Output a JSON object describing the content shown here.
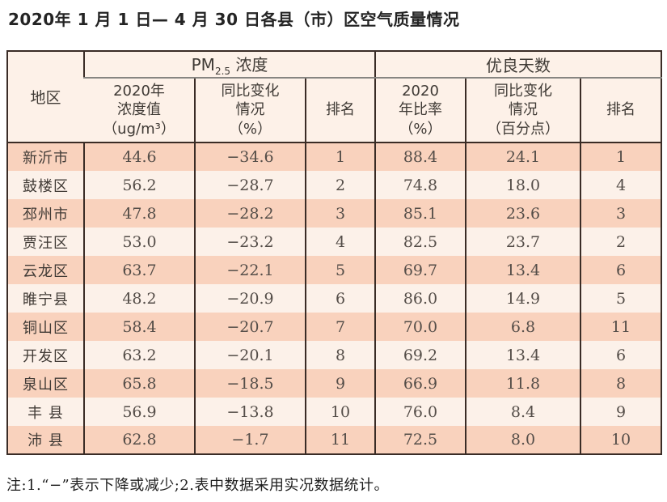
{
  "title": "2020年 1 月 1 日— 4 月 30 日各县（市）区空气质量情况",
  "note": "注:1.“−”表示下降或减少;2.表中数据采用实况数据统计。",
  "colors": {
    "stripe_salmon": "#f9d2bd",
    "stripe_cream": "#fcf1e9",
    "header_bg": "#fdf1e8",
    "border_dark": "#3a2c26",
    "border_gray": "#878581",
    "text_dark": "#3f3a35"
  },
  "table": {
    "header": {
      "region": "地区",
      "pm_group_prefix": "PM",
      "pm_group_sub": "2.5",
      "pm_group_suffix": " 浓度",
      "good_days_group": "优良天数",
      "pm_value": "2020年\n浓度值\n（ug/m³）",
      "pm_change": "同比变化\n情况\n（%）",
      "pm_rank": "排名",
      "good_rate": "2020\n年比率\n（%）",
      "good_change": "同比变化\n情况\n（百分点）",
      "good_rank": "排名"
    },
    "rows": [
      {
        "region": "新沂市",
        "pm_value": "44.6",
        "pm_change": "−34.6",
        "pm_rank": "1",
        "good_rate": "88.4",
        "good_change": "24.1",
        "good_rank": "1"
      },
      {
        "region": "鼓楼区",
        "pm_value": "56.2",
        "pm_change": "−28.7",
        "pm_rank": "2",
        "good_rate": "74.8",
        "good_change": "18.0",
        "good_rank": "4"
      },
      {
        "region": "邳州市",
        "pm_value": "47.8",
        "pm_change": "−28.2",
        "pm_rank": "3",
        "good_rate": "85.1",
        "good_change": "23.6",
        "good_rank": "3"
      },
      {
        "region": "贾汪区",
        "pm_value": "53.0",
        "pm_change": "−23.2",
        "pm_rank": "4",
        "good_rate": "82.5",
        "good_change": "23.7",
        "good_rank": "2"
      },
      {
        "region": "云龙区",
        "pm_value": "63.7",
        "pm_change": "−22.1",
        "pm_rank": "5",
        "good_rate": "69.7",
        "good_change": "13.4",
        "good_rank": "6"
      },
      {
        "region": "睢宁县",
        "pm_value": "48.2",
        "pm_change": "−20.9",
        "pm_rank": "6",
        "good_rate": "86.0",
        "good_change": "14.9",
        "good_rank": "5"
      },
      {
        "region": "铜山区",
        "pm_value": "58.4",
        "pm_change": "−20.7",
        "pm_rank": "7",
        "good_rate": "70.0",
        "good_change": "6.8",
        "good_rank": "11"
      },
      {
        "region": "开发区",
        "pm_value": "63.2",
        "pm_change": "−20.1",
        "pm_rank": "8",
        "good_rate": "69.2",
        "good_change": "13.4",
        "good_rank": "6"
      },
      {
        "region": "泉山区",
        "pm_value": "65.8",
        "pm_change": "−18.5",
        "pm_rank": "9",
        "good_rate": "66.9",
        "good_change": "11.8",
        "good_rank": "8"
      },
      {
        "region": "丰 县",
        "pm_value": "56.9",
        "pm_change": "−13.8",
        "pm_rank": "10",
        "good_rate": "76.0",
        "good_change": "8.4",
        "good_rank": "9"
      },
      {
        "region": "沛 县",
        "pm_value": "62.8",
        "pm_change": "−1.7",
        "pm_rank": "11",
        "good_rate": "72.5",
        "good_change": "8.0",
        "good_rank": "10"
      }
    ]
  },
  "chart_data": {
    "type": "table",
    "title": "2020年1月1日—4月30日各县（市）区空气质量情况",
    "columns": [
      "地区",
      "PM2.5 2020年浓度值(ug/m³)",
      "PM2.5 同比变化情况(%)",
      "PM2.5 排名",
      "优良天数 2020年比率(%)",
      "优良天数 同比变化情况(百分点)",
      "优良天数 排名"
    ],
    "rows": [
      [
        "新沂市",
        44.6,
        -34.6,
        1,
        88.4,
        24.1,
        1
      ],
      [
        "鼓楼区",
        56.2,
        -28.7,
        2,
        74.8,
        18.0,
        4
      ],
      [
        "邳州市",
        47.8,
        -28.2,
        3,
        85.1,
        23.6,
        3
      ],
      [
        "贾汪区",
        53.0,
        -23.2,
        4,
        82.5,
        23.7,
        2
      ],
      [
        "云龙区",
        63.7,
        -22.1,
        5,
        69.7,
        13.4,
        6
      ],
      [
        "睢宁县",
        48.2,
        -20.9,
        6,
        86.0,
        14.9,
        5
      ],
      [
        "铜山区",
        58.4,
        -20.7,
        7,
        70.0,
        6.8,
        11
      ],
      [
        "开发区",
        63.2,
        -20.1,
        8,
        69.2,
        13.4,
        6
      ],
      [
        "泉山区",
        65.8,
        -18.5,
        9,
        66.9,
        11.8,
        8
      ],
      [
        "丰县",
        56.9,
        -13.8,
        10,
        76.0,
        8.4,
        9
      ],
      [
        "沛县",
        62.8,
        -1.7,
        11,
        72.5,
        8.0,
        10
      ]
    ],
    "footnote": "注:1.“−”表示下降或减少;2.表中数据采用实况数据统计。"
  }
}
